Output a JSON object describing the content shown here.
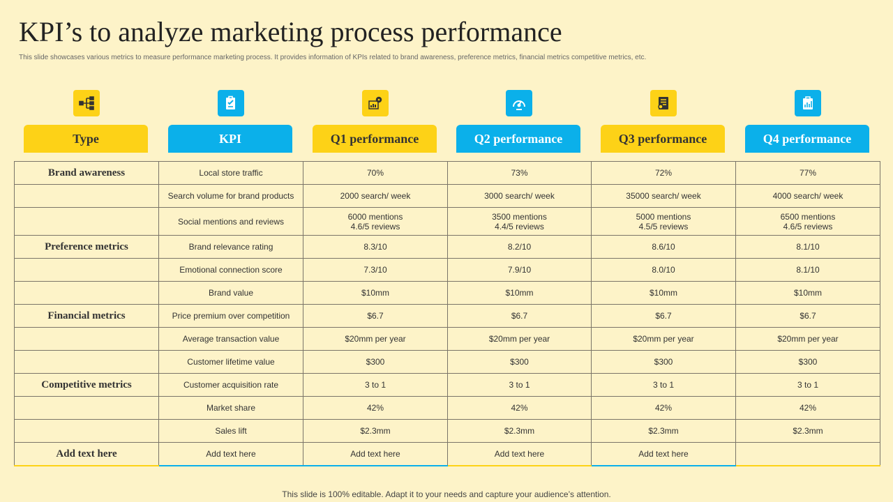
{
  "title": "KPI’s to analyze marketing process performance",
  "subtitle": "This slide showcases various metrics to measure performance marketing process. It provides information of KPIs related to brand awareness, preference metrics, financial metrics competitive metrics, etc.",
  "icons": [
    "hierarchy-icon",
    "clipboard-icon",
    "analytics-gear-icon",
    "gauge-icon",
    "checklist-icon",
    "report-icon"
  ],
  "colors": {
    "background": "#fdf3c8",
    "yellow": "#fdd217",
    "blue": "#0bb0ea"
  },
  "headers": [
    "Type",
    "KPI",
    "Q1 performance",
    "Q2 performance",
    "Q3 performance",
    "Q4 performance"
  ],
  "rows": [
    {
      "type": "Brand awareness",
      "kpi": "Local store traffic",
      "q": [
        "70%",
        "73%",
        "72%",
        "77%"
      ]
    },
    {
      "type": "",
      "kpi": "Search volume for brand products",
      "q": [
        "2000 search/ week",
        "3000 search/ week",
        "35000 search/ week",
        "4000 search/ week"
      ]
    },
    {
      "type": "",
      "kpi": "Social mentions and reviews",
      "q": [
        "6000 mentions\n4.6/5 reviews",
        "3500 mentions\n4.4/5 reviews",
        "5000 mentions\n4.5/5 reviews",
        "6500 mentions\n4.6/5 reviews"
      ]
    },
    {
      "type": "Preference metrics",
      "kpi": "Brand relevance rating",
      "q": [
        "8.3/10",
        "8.2/10",
        "8.6/10",
        "8.1/10"
      ]
    },
    {
      "type": "",
      "kpi": "Emotional connection score",
      "q": [
        "7.3/10",
        "7.9/10",
        "8.0/10",
        "8.1/10"
      ]
    },
    {
      "type": "",
      "kpi": "Brand value",
      "q": [
        "$10mm",
        "$10mm",
        "$10mm",
        "$10mm"
      ]
    },
    {
      "type": "Financial metrics",
      "kpi": "Price premium over competition",
      "q": [
        "$6.7",
        "$6.7",
        "$6.7",
        "$6.7"
      ]
    },
    {
      "type": "",
      "kpi": "Average transaction value",
      "q": [
        "$20mm per year",
        "$20mm per year",
        "$20mm per year",
        "$20mm per year"
      ]
    },
    {
      "type": "",
      "kpi": "Customer lifetime value",
      "q": [
        "$300",
        "$300",
        "$300",
        "$300"
      ]
    },
    {
      "type": "Competitive metrics",
      "kpi": "Customer acquisition rate",
      "q": [
        "3 to 1",
        "3 to 1",
        "3 to 1",
        "3 to 1"
      ]
    },
    {
      "type": "",
      "kpi": "Market share",
      "q": [
        "42%",
        "42%",
        "42%",
        "42%"
      ]
    },
    {
      "type": "",
      "kpi": "Sales lift",
      "q": [
        "$2.3mm",
        "$2.3mm",
        "$2.3mm",
        "$2.3mm"
      ]
    },
    {
      "type": "Add text here",
      "kpi": "Add text here",
      "q": [
        "Add text here",
        "Add text here",
        "Add text here",
        ""
      ]
    }
  ],
  "footer": "This slide is 100% editable. Adapt it to your needs and capture your audience’s attention."
}
